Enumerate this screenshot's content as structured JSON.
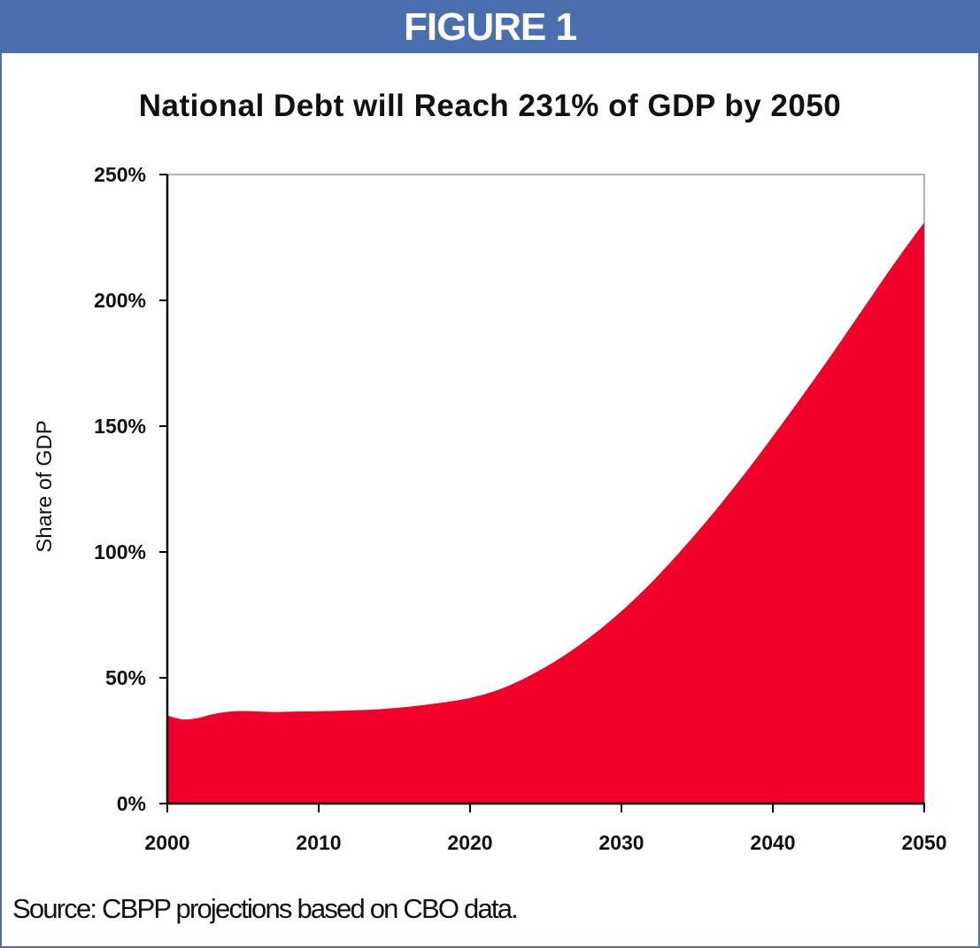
{
  "header": {
    "label": "FIGURE 1",
    "color": "#4a6fae"
  },
  "source_note": "Source: CBPP projections based on CBO data.",
  "chart_data": {
    "type": "area",
    "title": "National Debt will Reach 231% of GDP by 2050",
    "xlabel": "",
    "ylabel": "Share of GDP",
    "xlim": [
      2000,
      2050
    ],
    "ylim": [
      0,
      250
    ],
    "xticks": [
      2000,
      2010,
      2020,
      2030,
      2040,
      2050
    ],
    "xtick_labels": [
      "2000",
      "2010",
      "2020",
      "2030",
      "2040",
      "2050"
    ],
    "yticks": [
      0,
      50,
      100,
      150,
      200,
      250
    ],
    "ytick_labels": [
      "0%",
      "50%",
      "100%",
      "150%",
      "200%",
      "250%"
    ],
    "grid": false,
    "legend": "none",
    "fill_color": "#f0002a",
    "series": [
      {
        "x": [
          2000,
          2001,
          2002,
          2003,
          2004,
          2005,
          2006,
          2007,
          2008,
          2009,
          2010,
          2012,
          2014,
          2016,
          2018,
          2020,
          2022,
          2024,
          2026,
          2028,
          2030,
          2032,
          2034,
          2036,
          2038,
          2040,
          2042,
          2044,
          2046,
          2048,
          2050
        ],
        "values": [
          35,
          33.5,
          34,
          35.5,
          36.5,
          36.8,
          36.6,
          36.4,
          36.5,
          36.6,
          36.7,
          37,
          37.5,
          38.5,
          40,
          42,
          45.5,
          51,
          58,
          66.5,
          76.5,
          88,
          101,
          115,
          130,
          146,
          162.5,
          179.5,
          197,
          214.5,
          231
        ]
      }
    ]
  }
}
